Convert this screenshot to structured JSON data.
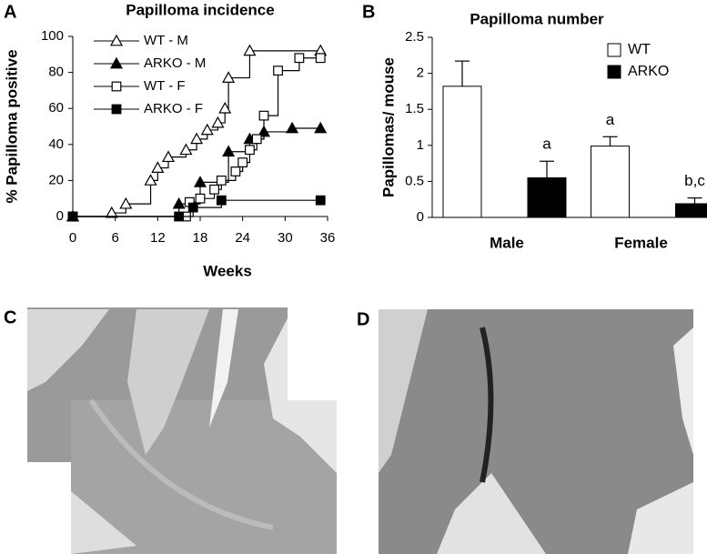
{
  "chart_data": [
    {
      "type": "step",
      "panel": "A",
      "title": "Papilloma incidence",
      "xlabel": "Weeks",
      "ylabel": "% Papilloma positive",
      "xlim": [
        0,
        36
      ],
      "xticks": [
        0,
        6,
        12,
        18,
        24,
        30,
        36
      ],
      "ylim": [
        0,
        100
      ],
      "yticks": [
        0,
        20,
        40,
        60,
        80,
        100
      ],
      "legend": "upper left",
      "series": [
        {
          "name": "WT - M",
          "marker": "triangle",
          "filled": false,
          "color": "#000000",
          "x": [
            0,
            5.5,
            7.5,
            11,
            12,
            13.5,
            16,
            17.5,
            19,
            20.5,
            21.5,
            22,
            25,
            35
          ],
          "values": [
            0,
            2,
            7,
            20,
            27,
            33,
            37,
            43,
            48,
            52,
            60,
            77,
            92,
            92
          ]
        },
        {
          "name": "ARKO - M",
          "marker": "triangle",
          "filled": true,
          "color": "#000000",
          "x": [
            0,
            15,
            18,
            22,
            25,
            27,
            31,
            35
          ],
          "values": [
            0,
            7,
            19,
            36,
            43,
            47,
            49,
            49
          ]
        },
        {
          "name": "WT - F",
          "marker": "square",
          "filled": false,
          "color": "#000000",
          "x": [
            0,
            16,
            16.5,
            18,
            20,
            21,
            23,
            24,
            25,
            26,
            27,
            29,
            32,
            35
          ],
          "values": [
            0,
            0,
            8,
            10,
            15,
            20,
            25,
            30,
            37,
            43,
            56,
            81,
            88,
            88
          ]
        },
        {
          "name": "ARKO - F",
          "marker": "square",
          "filled": true,
          "color": "#000000",
          "x": [
            0,
            15,
            17,
            21,
            35
          ],
          "values": [
            0,
            0,
            5,
            9,
            9
          ]
        }
      ]
    },
    {
      "type": "bar",
      "panel": "B",
      "title": "Papilloma number",
      "ylabel": "Papillomas/ mouse",
      "categories": [
        "Male",
        "Female"
      ],
      "ylim": [
        0,
        2.5
      ],
      "yticks": [
        0,
        0.5,
        1,
        1.5,
        2,
        2.5
      ],
      "legend": "upper right",
      "series": [
        {
          "name": "WT",
          "color": "#ffffff",
          "values": [
            1.82,
            0.99
          ],
          "errors": [
            0.35,
            0.13
          ],
          "annotations": [
            null,
            "a"
          ]
        },
        {
          "name": "ARKO",
          "color": "#000000",
          "values": [
            0.55,
            0.19
          ],
          "errors": [
            0.23,
            0.08
          ],
          "annotations": [
            "a",
            "b,c"
          ]
        }
      ]
    }
  ],
  "panels": [
    "C",
    "D"
  ]
}
